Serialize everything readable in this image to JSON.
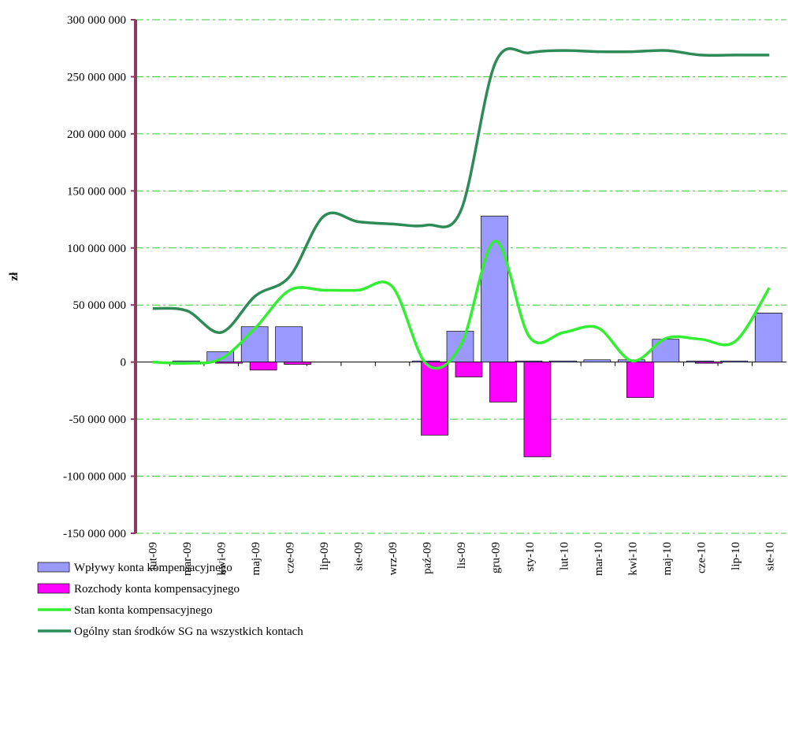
{
  "chart_data": {
    "type": "bar-line",
    "y_label": "zł",
    "categories": [
      "lut-09",
      "mar-09",
      "kwi-09",
      "maj-09",
      "cze-09",
      "lip-09",
      "sie-09",
      "wrz-09",
      "paź-09",
      "lis-09",
      "gru-09",
      "sty-10",
      "lut-10",
      "mar-10",
      "kwi-10",
      "maj-10",
      "cze-10",
      "lip-10",
      "sie-10"
    ],
    "series": [
      {
        "name": "Wpływy konta kompensacyjnego",
        "kind": "bar",
        "color": "#9999ff",
        "values": [
          0,
          1000000,
          9000000,
          31000000,
          31000000,
          0,
          0,
          0,
          1000000,
          27000000,
          128000000,
          1000000,
          1000000,
          2000000,
          2000000,
          20000000,
          1000000,
          1000000,
          43000000
        ]
      },
      {
        "name": "Rozchody konta kompensacyjnego",
        "kind": "bar",
        "color": "#ff00ff",
        "values": [
          0,
          0,
          -1000000,
          -7000000,
          -2000000,
          0,
          0,
          0,
          -64000000,
          -13000000,
          -35000000,
          -83000000,
          0,
          0,
          -31000000,
          0,
          -1000000,
          0,
          0
        ]
      },
      {
        "name": "Stan konta kompensacyjnego",
        "kind": "line",
        "color": "#33ee33",
        "values": [
          0,
          -1000000,
          3000000,
          30000000,
          63000000,
          63000000,
          63000000,
          66000000,
          -2000000,
          15000000,
          106000000,
          22000000,
          26000000,
          30000000,
          1000000,
          21000000,
          20000000,
          18000000,
          65000000
        ]
      },
      {
        "name": "Ogólny stan środków SG na wszystkich kontach",
        "kind": "line",
        "color": "#2e8b57",
        "values": [
          47000000,
          45000000,
          26000000,
          58000000,
          75000000,
          128000000,
          123000000,
          121000000,
          120000000,
          133000000,
          262000000,
          271000000,
          273000000,
          272000000,
          272000000,
          273000000,
          269000000,
          269000000,
          269000000
        ]
      }
    ],
    "ylim": [
      -150000000,
      300000000
    ],
    "yticks": [
      {
        "value": -150000000,
        "label": "-150 000 000"
      },
      {
        "value": -100000000,
        "label": "-100 000 000"
      },
      {
        "value": -50000000,
        "label": "-50 000 000"
      },
      0,
      {
        "value": 50000000,
        "label": "50 000 000"
      },
      {
        "value": 100000000,
        "label": "100 000 000"
      },
      {
        "value": 150000000,
        "label": "150 000 000"
      },
      {
        "value": 200000000,
        "label": "200 000 000"
      },
      {
        "value": 250000000,
        "label": "250 000 000"
      },
      {
        "value": 300000000,
        "label": "300 000 000"
      }
    ],
    "grid": true,
    "legend": "bottom"
  }
}
